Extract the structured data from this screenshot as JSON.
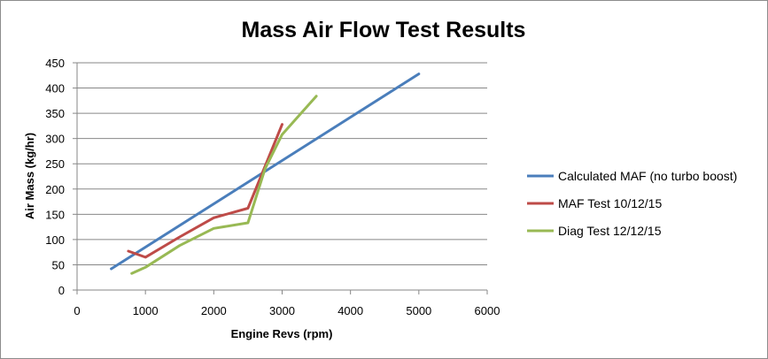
{
  "chart_data": {
    "type": "line",
    "title": "Mass Air Flow  Test Results",
    "xlabel": "Engine Revs (rpm)",
    "ylabel": "Air Mass (kg/hr)",
    "xlim": [
      0,
      6000
    ],
    "ylim": [
      0,
      450
    ],
    "xticks": [
      0,
      1000,
      2000,
      3000,
      4000,
      5000,
      6000
    ],
    "yticks": [
      0,
      50,
      100,
      150,
      200,
      250,
      300,
      350,
      400,
      450
    ],
    "grid": "horizontal",
    "legend_position": "right",
    "series": [
      {
        "name": "Calculated MAF (no turbo boost)",
        "color": "#4a7ebb",
        "points": [
          [
            500,
            42
          ],
          [
            5000,
            428
          ]
        ]
      },
      {
        "name": "MAF Test 10/12/15",
        "color": "#be4b48",
        "points": [
          [
            750,
            77
          ],
          [
            1000,
            65
          ],
          [
            1500,
            105
          ],
          [
            2000,
            143
          ],
          [
            2500,
            162
          ],
          [
            3000,
            328
          ]
        ]
      },
      {
        "name": "Diag Test 12/12/15",
        "color": "#98b954",
        "points": [
          [
            800,
            33
          ],
          [
            1000,
            45
          ],
          [
            1500,
            88
          ],
          [
            2000,
            122
          ],
          [
            2500,
            133
          ],
          [
            2750,
            240
          ],
          [
            3000,
            308
          ],
          [
            3500,
            384
          ]
        ]
      }
    ]
  }
}
